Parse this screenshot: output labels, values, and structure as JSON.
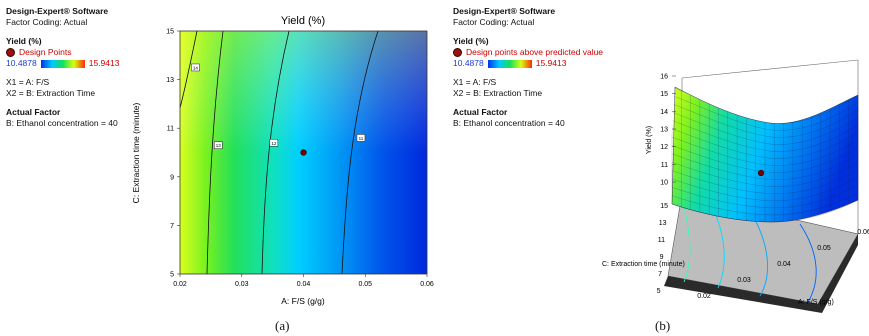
{
  "left_panel": {
    "software": "Design-Expert® Software",
    "coding": "Factor Coding: Actual",
    "response": "Yield (%)",
    "points_label": "Design Points",
    "range_min": "10.4878",
    "range_max": "15.9413",
    "x1": "X1 = A: F/S",
    "x2": "X2 = B: Extraction Time",
    "actual_factor": "Actual Factor",
    "factor_line": "B: Ethanol concentration = 40"
  },
  "right_panel": {
    "software": "Design-Expert® Software",
    "coding": "Factor Coding: Actual",
    "response": "Yield (%)",
    "points_label": "Design points above predicted value",
    "range_min": "10.4878",
    "range_max": "15.9413",
    "x1": "X1 = A: F/S",
    "x2": "X2 = B: Extraction Time",
    "actual_factor": "Actual Factor",
    "factor_line": "B: Ethanol concentration = 40"
  },
  "captions": {
    "a": "(a)",
    "b": "(b)"
  },
  "colors": {
    "low": "#0033ee",
    "mid": "#00c8ff",
    "high": "#ff2a00",
    "point": "#9b1111"
  },
  "chart_data": [
    {
      "type": "contour",
      "title": "Yield  (%)",
      "xlabel": "A: F/S (g/g)",
      "ylabel": "C: Extraction time (minute)",
      "xlim": [
        0.02,
        0.06
      ],
      "ylim": [
        5,
        15
      ],
      "xticks": [
        "0.02",
        "0.03",
        "0.04",
        "0.05",
        "0.06"
      ],
      "yticks": [
        "5",
        "7",
        "9",
        "11",
        "13",
        "15"
      ],
      "contours": [
        {
          "level": "14",
          "label_x": 0.0225,
          "label_y": 13.5
        },
        {
          "level": "13",
          "label_x": 0.0262,
          "label_y": 10.3
        },
        {
          "level": "12",
          "label_x": 0.0352,
          "label_y": 10.4
        },
        {
          "level": "11",
          "label_x": 0.0493,
          "label_y": 10.6
        }
      ],
      "design_point": {
        "x": 0.04,
        "y": 10
      },
      "colorscale_range": [
        10.4878,
        15.9413
      ]
    },
    {
      "type": "surface",
      "xlabel": "A: F/S (g/g)",
      "ylabel": "C: Extraction time (minute)",
      "zlabel": "Yield (%)",
      "xticks": [
        "0.02",
        "0.03",
        "0.04",
        "0.05",
        "0.06"
      ],
      "yticks": [
        "5",
        "7",
        "9",
        "11",
        "13",
        "15"
      ],
      "zticks": [
        "10",
        "11",
        "12",
        "13",
        "14",
        "15",
        "16"
      ],
      "zlim": [
        10,
        16
      ],
      "design_point": {
        "x": 0.04,
        "y": 10
      }
    }
  ]
}
